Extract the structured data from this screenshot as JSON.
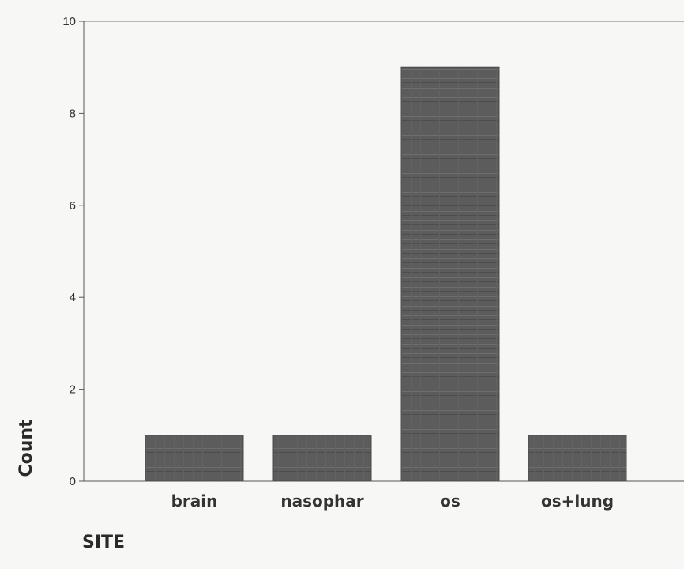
{
  "chart_data": {
    "type": "bar",
    "categories": [
      "brain",
      "nasophar",
      "os",
      "os+lung"
    ],
    "values": [
      1,
      1,
      9,
      1
    ],
    "xlabel": "SITE",
    "ylabel": "Count",
    "ylim": [
      0,
      10
    ],
    "yticks": [
      0,
      2,
      4,
      6,
      8,
      10
    ],
    "bar_color": "#5c5c5c",
    "grid": false
  }
}
